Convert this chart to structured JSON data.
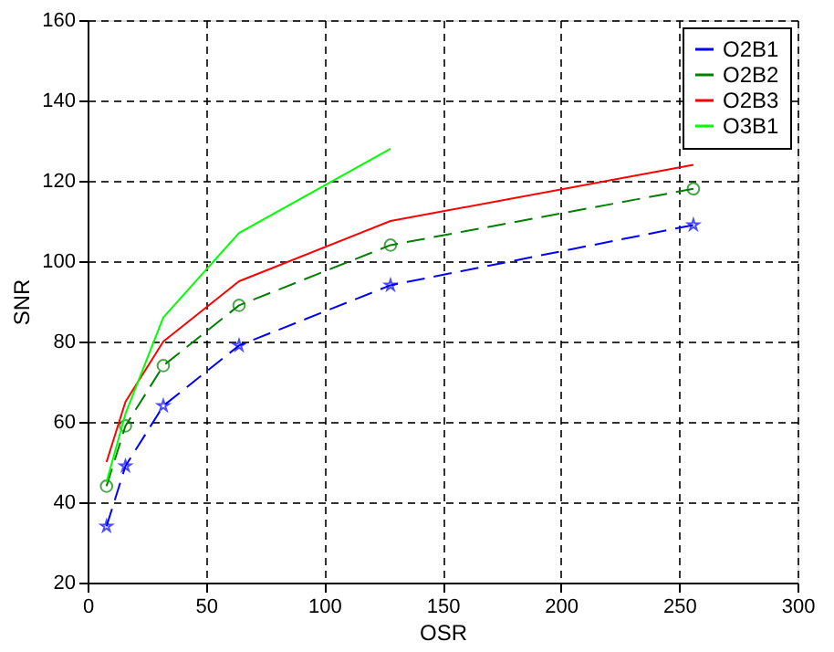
{
  "chart_data": {
    "type": "line",
    "xlabel": "OSR",
    "ylabel": "SNR",
    "x": [
      8,
      16,
      32,
      64,
      128,
      256
    ],
    "series": [
      {
        "name": "O2B1",
        "color": "#0000ff",
        "values": [
          34,
          49,
          64,
          79,
          94,
          109
        ],
        "marker": "star",
        "line_style": "dashed"
      },
      {
        "name": "O2B2",
        "color": "#008000",
        "values": [
          44,
          59,
          74,
          89,
          104,
          118
        ],
        "marker": "circle",
        "line_style": "dashed"
      },
      {
        "name": "O2B3",
        "color": "#ff0000",
        "values": [
          50,
          65,
          80,
          95,
          110,
          124
        ],
        "marker": "none",
        "line_style": "solid"
      },
      {
        "name": "O3B1",
        "color": "#00ff00",
        "values": [
          45,
          62,
          86,
          107,
          128,
          null
        ],
        "marker": "none",
        "line_style": "solid"
      }
    ],
    "xlim": [
      0,
      300
    ],
    "xticks": [
      0,
      50,
      100,
      150,
      200,
      250,
      300
    ],
    "ylim": [
      20,
      160
    ],
    "yticks": [
      20,
      40,
      60,
      80,
      100,
      120,
      140,
      160
    ],
    "grid": true,
    "legend": "top right"
  }
}
